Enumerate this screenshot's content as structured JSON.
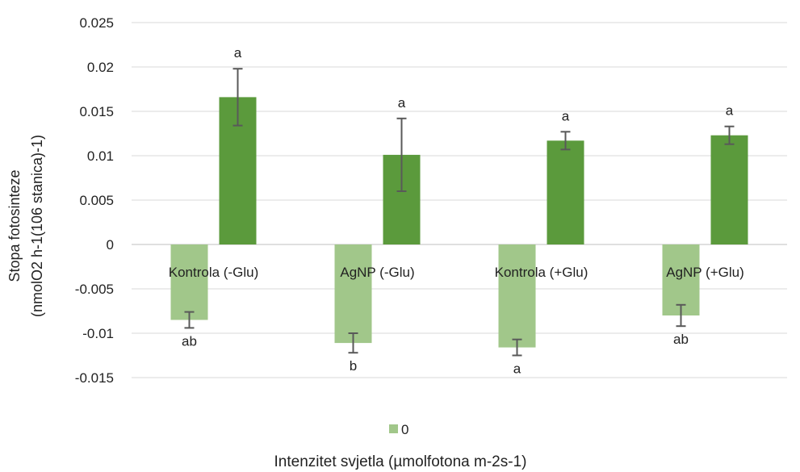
{
  "chart_data": {
    "type": "bar",
    "categories": [
      "Kontrola (-Glu)",
      "AgNP (-Glu)",
      "Kontrola (+Glu)",
      "AgNP (+Glu)"
    ],
    "series": [
      {
        "name": "0",
        "color": "#a1c78a",
        "values": [
          -0.0085,
          -0.0111,
          -0.0116,
          -0.008
        ],
        "errors": [
          0.0009,
          0.0011,
          0.0009,
          0.0012
        ],
        "labels": [
          "ab",
          "b",
          "a",
          "ab"
        ]
      },
      {
        "color": "#5b9a3c",
        "values": [
          0.0166,
          0.0101,
          0.0117,
          0.0123
        ],
        "errors": [
          0.0032,
          0.0041,
          0.001,
          0.001
        ],
        "labels": [
          "a",
          "a",
          "a",
          "a"
        ]
      }
    ],
    "ylabel_line1": "Stopa fotosinteze",
    "ylabel_line2": "(nmolO2 h-1(106 stanica)-1)",
    "xlabel": "Intenzitet svjetla (µmolfotona m-2s-1)",
    "ylim": [
      -0.015,
      0.025
    ],
    "yticks": [
      0.025,
      0.02,
      0.015,
      0.01,
      0.005,
      0,
      -0.005,
      -0.01,
      -0.015
    ],
    "ytick_labels": [
      "0.025",
      "0.02",
      "0.015",
      "0.01",
      "0.005",
      "0",
      "-0.005",
      "-0.01",
      "-0.015"
    ],
    "grid": true,
    "legend_position": "bottom"
  }
}
